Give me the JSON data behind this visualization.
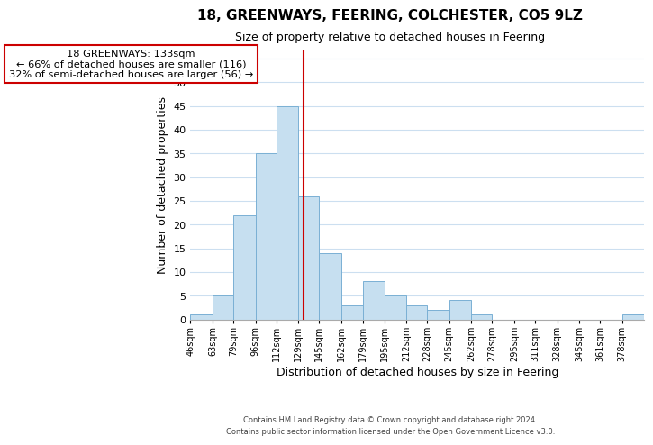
{
  "title": "18, GREENWAYS, FEERING, COLCHESTER, CO5 9LZ",
  "subtitle": "Size of property relative to detached houses in Feering",
  "xlabel": "Distribution of detached houses by size in Feering",
  "ylabel": "Number of detached properties",
  "bar_color": "#c6dff0",
  "bar_edge_color": "#7ab0d4",
  "bin_edges": [
    46,
    63,
    79,
    96,
    112,
    129,
    145,
    162,
    179,
    195,
    212,
    228,
    245,
    262,
    278,
    295,
    311,
    328,
    345,
    361,
    378,
    395
  ],
  "bar_heights": [
    1,
    5,
    22,
    35,
    45,
    26,
    14,
    3,
    8,
    5,
    3,
    2,
    4,
    1,
    0,
    0,
    0,
    0,
    0,
    0,
    1
  ],
  "tick_labels": [
    "46sqm",
    "63sqm",
    "79sqm",
    "96sqm",
    "112sqm",
    "129sqm",
    "145sqm",
    "162sqm",
    "179sqm",
    "195sqm",
    "212sqm",
    "228sqm",
    "245sqm",
    "262sqm",
    "278sqm",
    "295sqm",
    "311sqm",
    "328sqm",
    "345sqm",
    "361sqm",
    "378sqm"
  ],
  "property_line_x": 133,
  "property_line_color": "#cc0000",
  "ylim": [
    0,
    57
  ],
  "yticks": [
    0,
    5,
    10,
    15,
    20,
    25,
    30,
    35,
    40,
    45,
    50,
    55
  ],
  "annotation_line1": "18 GREENWAYS: 133sqm",
  "annotation_line2": "← 66% of detached houses are smaller (116)",
  "annotation_line3": "32% of semi-detached houses are larger (56) →",
  "footer_line1": "Contains HM Land Registry data © Crown copyright and database right 2024.",
  "footer_line2": "Contains public sector information licensed under the Open Government Licence v3.0.",
  "background_color": "#ffffff",
  "grid_color": "#ccdff0"
}
